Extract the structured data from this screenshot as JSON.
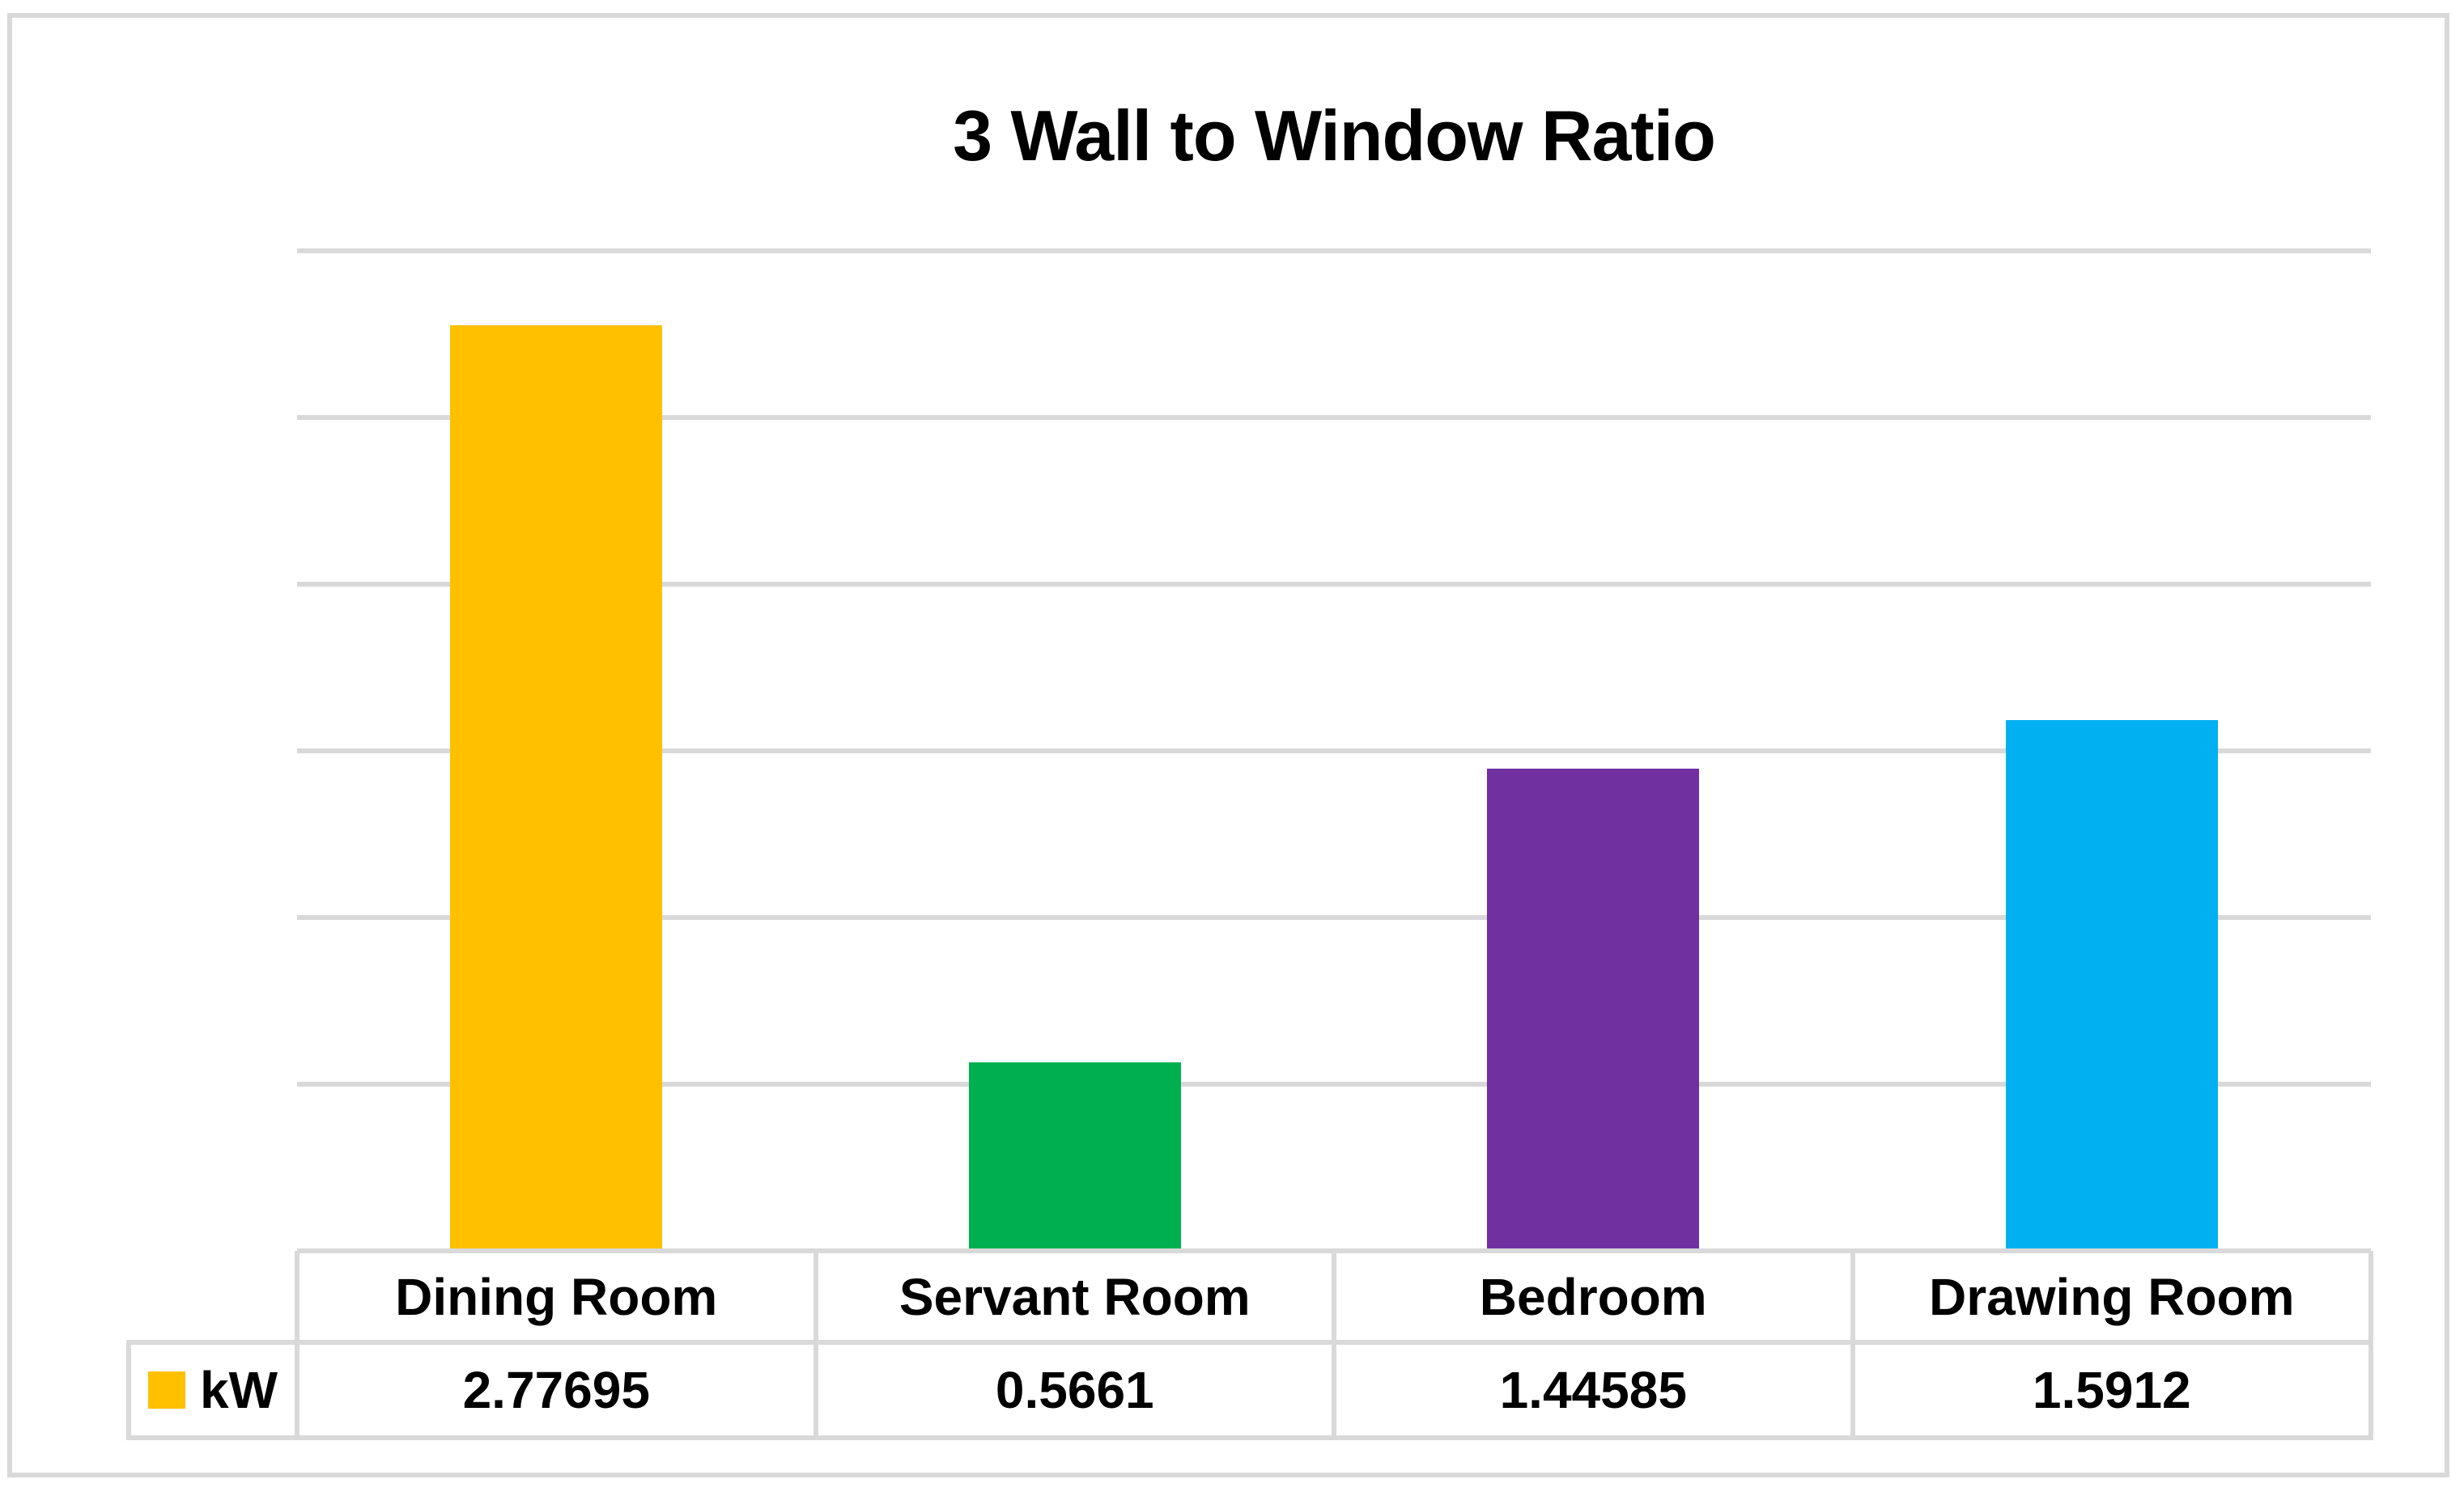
{
  "chart_data": {
    "type": "bar",
    "title": "3 Wall to Window Ratio",
    "categories": [
      "Dining Room",
      "Servant Room",
      "Bedroom",
      "Drawing Room"
    ],
    "series": [
      {
        "name": "kW",
        "values": [
          2.77695,
          0.5661,
          1.44585,
          1.5912
        ],
        "display_values": [
          "2.77695",
          "0.5661",
          "1.44585",
          "1.5912"
        ]
      }
    ],
    "bar_colors": [
      "#FFC000",
      "#00B050",
      "#7030A0",
      "#00B0F0"
    ],
    "legend_swatch_color": "#FFC000",
    "xlabel": "",
    "ylabel": "",
    "ylim": [
      0,
      3
    ],
    "gridline_step": 0.5,
    "grid": "horizontal gridlines only, no axis tick labels",
    "legend_position": "bottom-left of data table",
    "data_table_shown": true
  },
  "colors": {
    "gridline": "#D9D9D9",
    "table_border": "#D9D9D9",
    "chart_border": "#D9D9D9",
    "text": "#000000",
    "background": "#FFFFFF"
  }
}
